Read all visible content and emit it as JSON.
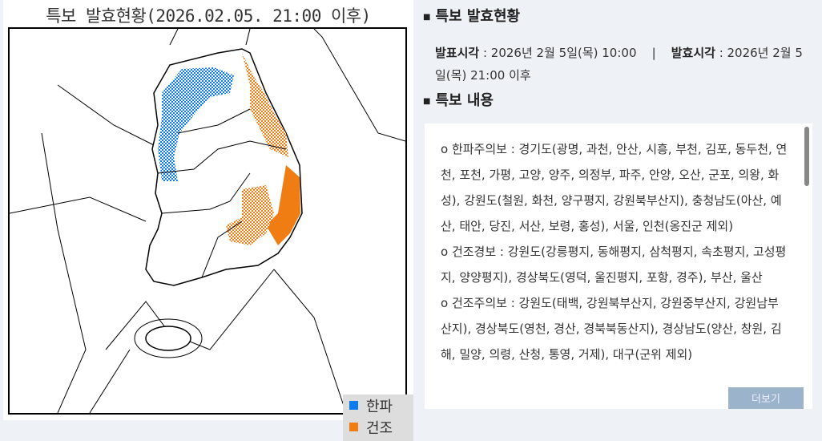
{
  "map": {
    "title": "특보 발효현황(2026.02.05. 21:00 이후)",
    "legend": [
      {
        "label": "한파",
        "color": "#0a7cf0"
      },
      {
        "label": "건조",
        "color": "#f07d14"
      }
    ]
  },
  "status": {
    "heading": "특보 발효현황",
    "issued_label": "발표시각",
    "issued_value": " : 2026년 2월 5일(목) 10:00",
    "separator": "|",
    "effective_label": "발효시각",
    "effective_value": " : 2026년 2월 5일(목) 21:00 이후"
  },
  "content": {
    "heading": "특보 내용",
    "items": [
      "o 한파주의보 : 경기도(광명, 과천, 안산, 시흥, 부천, 김포, 동두천, 연천, 포천, 가평, 고양, 양주, 의정부, 파주, 안양, 오산, 군포, 의왕, 화성), 강원도(철원, 화천, 양구평지, 강원북부산지), 충청남도(아산, 예산, 태안, 당진, 서산, 보령, 홍성), 서울, 인천(옹진군 제외)",
      "o 건조경보 : 강원도(강릉평지, 동해평지, 삼척평지, 속초평지, 고성평지, 양양평지), 경상북도(영덕, 울진평지, 포항, 경주), 부산, 울산",
      "o 건조주의보 : 강원도(태백, 강원북부산지, 강원중부산지, 강원남부산지), 경상북도(영천, 경산, 경북북동산지), 경상남도(양산, 창원, 김해, 밀양, 의령, 산청, 통영, 거제), 대구(군위 제외)"
    ],
    "more_label": "더보기"
  }
}
